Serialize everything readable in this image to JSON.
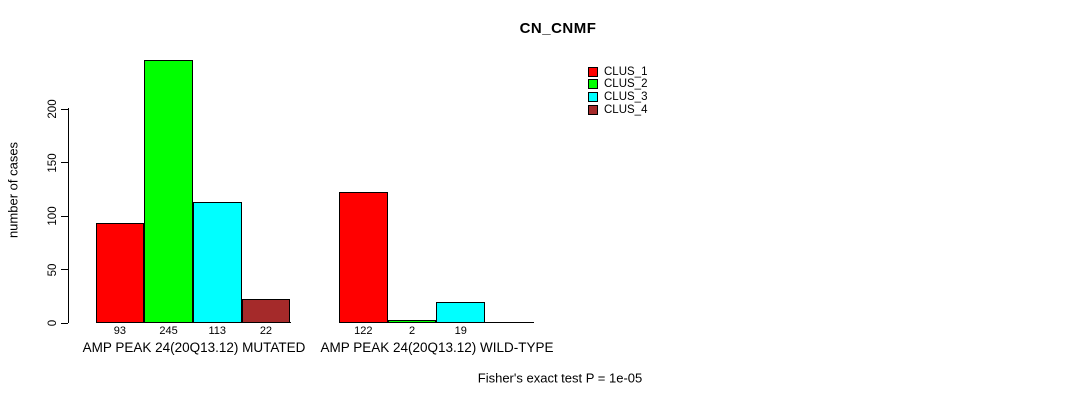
{
  "title": "CN_CNMF",
  "footer": "Fisher's exact test P = 1e-05",
  "chart_data": {
    "type": "bar",
    "title": "CN_CNMF",
    "xlabel": "",
    "ylabel": "number of cases",
    "yticks": [
      0,
      50,
      100,
      150,
      200
    ],
    "ylim": [
      0,
      245
    ],
    "grid": false,
    "legend_position": "top-right",
    "bar_value_labels": true,
    "categories": [
      "AMP PEAK 24(20Q13.12) MUTATED",
      "AMP PEAK 24(20Q13.12) WILD-TYPE"
    ],
    "series": [
      {
        "name": "CLUS_1",
        "color": "#ff0000",
        "values": [
          93,
          122
        ]
      },
      {
        "name": "CLUS_2",
        "color": "#00ff00",
        "values": [
          245,
          2
        ]
      },
      {
        "name": "CLUS_3",
        "color": "#00ffff",
        "values": [
          113,
          19
        ]
      },
      {
        "name": "CLUS_4",
        "color": "#a52a2a",
        "values": [
          22,
          0
        ]
      }
    ],
    "annotation": "Fisher's exact test P = 1e-05"
  }
}
